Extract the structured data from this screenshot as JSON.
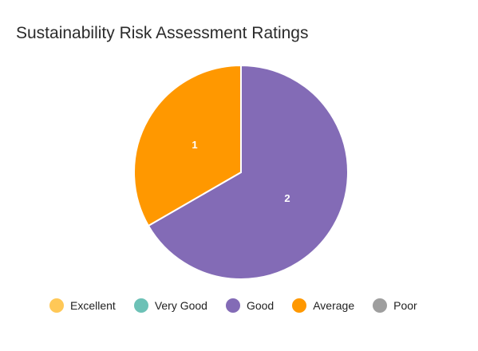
{
  "chart_data": {
    "type": "pie",
    "title": "Sustainability Risk Assessment Ratings",
    "categories": [
      "Excellent",
      "Very Good",
      "Good",
      "Average",
      "Poor"
    ],
    "values": [
      0,
      0,
      2,
      1,
      0
    ],
    "colors": {
      "Excellent": "#ffc857",
      "Very Good": "#6cc1b6",
      "Good": "#836bb6",
      "Average": "#ff9800",
      "Poor": "#9e9e9e"
    },
    "legend_position": "bottom",
    "data_labels": true
  }
}
